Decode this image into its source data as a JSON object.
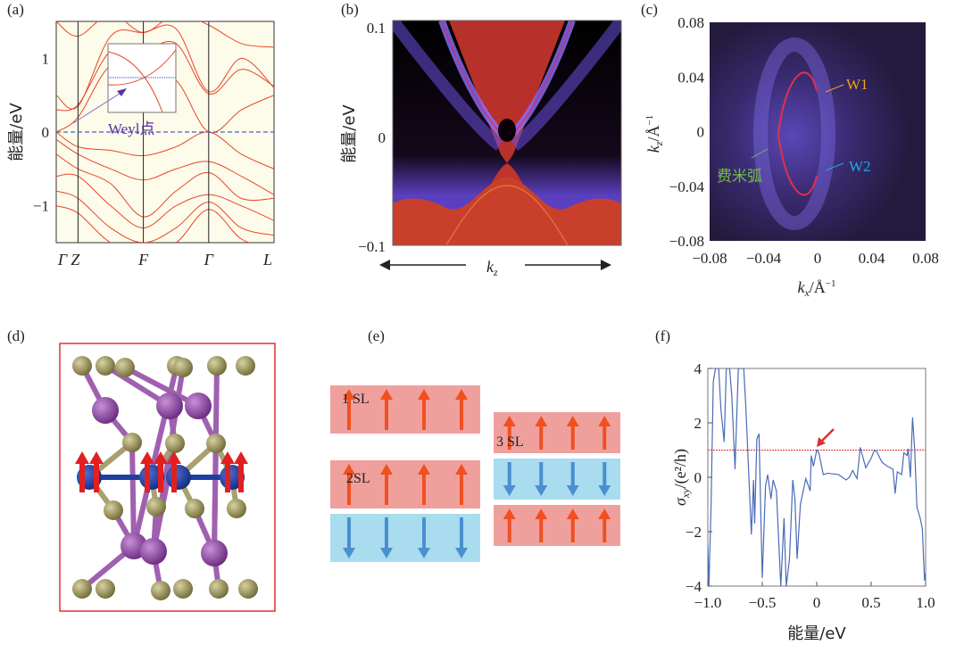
{
  "panels": {
    "a": {
      "label": "(a)",
      "ylabel": "能量/eV",
      "annotation": "Weyl点"
    },
    "b": {
      "label": "(b)",
      "ylabel": "能量/eV",
      "xlabel": "k",
      "xlabel_sub": "z"
    },
    "c": {
      "label": "(c)",
      "ylabel": "k",
      "ylabel_sub": "z",
      "ylabel_unit": "/Å",
      "xlabel": "k",
      "xlabel_sub": "x",
      "xlabel_unit": "/Å",
      "unit_sup": "−1",
      "annotations": {
        "w1": "W1",
        "w2": "W2",
        "arc": "费米弧"
      }
    },
    "d": {
      "label": "(d)"
    },
    "e": {
      "label": "(e)",
      "layers": {
        "sl1": "1 SL",
        "sl2": "2SL",
        "sl3": "3 SL"
      }
    },
    "f": {
      "label": "(f)",
      "ylabel": "σ",
      "ylabel_sub": "xy",
      "ylabel_unit": "/(e²/h)",
      "xlabel": "能量/eV"
    }
  },
  "colors": {
    "band": "#e8452c",
    "fermi": "#4a5fc0",
    "sigma": "#4a6ab8",
    "ref": "#e03030",
    "arrow_up": "#f05020",
    "arrow_down": "#4a90d0",
    "layer_up": "#f0a09c",
    "layer_down": "#a8dcee",
    "w1": "#f0a020",
    "w2": "#20a8e0",
    "arc": "#70c040"
  },
  "chart_data": [
    {
      "panel": "a",
      "type": "line",
      "ylabel": "能量/eV",
      "ylim": [
        -1.5,
        1.5
      ],
      "yticks": [
        "1",
        "0",
        "−1"
      ],
      "ytick_values": [
        1,
        0,
        -1
      ],
      "xticks": [
        "Γ",
        "Z",
        "F",
        "Γ",
        "L"
      ],
      "xtick_positions": [
        0,
        0.1,
        0.4,
        0.7,
        1.0
      ],
      "k": [
        0,
        0.1,
        0.25,
        0.4,
        0.55,
        0.7,
        0.85,
        1.0
      ],
      "series": [
        {
          "values": [
            1.5,
            1.3,
            1.6,
            1.35,
            1.6,
            1.45,
            1.2,
            1.15
          ]
        },
        {
          "values": [
            0.5,
            0.35,
            1.3,
            1.35,
            1.4,
            0.55,
            1.0,
            0.6
          ]
        },
        {
          "values": [
            0.3,
            0.37,
            1.1,
            1.1,
            1.2,
            0.52,
            0.85,
            0.62
          ]
        },
        {
          "values": [
            0.0,
            0.2,
            0.9,
            0.75,
            0.7,
            0.0,
            0.3,
            0.5
          ]
        },
        {
          "values": [
            0.0,
            -0.2,
            -0.25,
            -0.32,
            -0.2,
            0.0,
            -0.3,
            -0.5
          ]
        },
        {
          "values": [
            -0.1,
            -0.3,
            -0.5,
            -0.65,
            -0.5,
            -0.4,
            -0.6,
            -0.85
          ]
        },
        {
          "values": [
            -0.3,
            -0.5,
            -0.7,
            -1.15,
            -0.8,
            -0.55,
            -0.9,
            -0.9
          ]
        },
        {
          "values": [
            -0.6,
            -0.6,
            -1.0,
            -1.3,
            -1.0,
            -0.85,
            -1.0,
            -1.2
          ]
        },
        {
          "values": [
            -0.8,
            -0.9,
            -1.3,
            -1.5,
            -1.3,
            -0.95,
            -1.3,
            -1.4
          ]
        },
        {
          "values": [
            -1.0,
            -1.1,
            -1.5,
            -1.6,
            -1.5,
            -1.05,
            -1.45,
            -1.6
          ]
        }
      ],
      "reference_line": {
        "y": 0,
        "style": "dashed"
      }
    },
    {
      "panel": "b",
      "type": "heatmap",
      "ylabel": "能量/eV",
      "xlabel": "kz",
      "ylim": [
        -0.1,
        0.1
      ],
      "yticks": [
        "0.1",
        "0",
        "−0.1"
      ],
      "ytick_values": [
        0.1,
        0,
        -0.1
      ]
    },
    {
      "panel": "c",
      "type": "heatmap",
      "xlabel": "kx/Å⁻¹",
      "ylabel": "kz/Å⁻¹",
      "xlim": [
        -0.08,
        0.08
      ],
      "ylim": [
        -0.08,
        0.08
      ],
      "xticks": [
        "−0.08",
        "−0.04",
        "0",
        "0.04",
        "0.08"
      ],
      "xtick_values": [
        -0.08,
        -0.04,
        0,
        0.04,
        0.08
      ],
      "yticks": [
        "0.08",
        "0.04",
        "0",
        "−0.04",
        "−0.08"
      ],
      "ytick_values": [
        0.08,
        0.04,
        0,
        -0.04,
        -0.08
      ]
    },
    {
      "panel": "f",
      "type": "line",
      "xlabel": "能量/eV",
      "ylabel": "σxy/(e²/h)",
      "xlim": [
        -1.0,
        1.0
      ],
      "ylim": [
        -4,
        4
      ],
      "xticks": [
        "−1.0",
        "−0.5",
        "0",
        "0.5",
        "1.0"
      ],
      "xtick_values": [
        -1,
        -0.5,
        0,
        0.5,
        1
      ],
      "yticks": [
        "4",
        "2",
        "0",
        "−2",
        "−4"
      ],
      "ytick_values": [
        4,
        2,
        0,
        -2,
        -4
      ],
      "reference_line": {
        "y": 1,
        "style": "dashed"
      },
      "arrow_at": [
        0,
        1
      ],
      "x": [
        -1.0,
        -0.99,
        -0.97,
        -0.95,
        -0.93,
        -0.9,
        -0.88,
        -0.85,
        -0.83,
        -0.8,
        -0.78,
        -0.75,
        -0.72,
        -0.67,
        -0.65,
        -0.6,
        -0.58,
        -0.57,
        -0.55,
        -0.53,
        -0.5,
        -0.47,
        -0.45,
        -0.42,
        -0.4,
        -0.37,
        -0.33,
        -0.3,
        -0.28,
        -0.25,
        -0.22,
        -0.2,
        -0.18,
        -0.15,
        -0.1,
        -0.06,
        -0.05,
        -0.03,
        0.0,
        0.02,
        0.06,
        0.1,
        0.2,
        0.27,
        0.3,
        0.33,
        0.37,
        0.4,
        0.42,
        0.45,
        0.5,
        0.53,
        0.55,
        0.6,
        0.65,
        0.7,
        0.72,
        0.74,
        0.78,
        0.8,
        0.83,
        0.84,
        0.86,
        0.88,
        0.9,
        0.92,
        0.95,
        0.97,
        0.99,
        1.0
      ],
      "y": [
        -2.5,
        -4,
        -1,
        3.5,
        4,
        4,
        2.5,
        1.3,
        4,
        4,
        3,
        0.3,
        4,
        4,
        2.5,
        -2.1,
        -0.1,
        -1.7,
        1.4,
        1.6,
        -3.7,
        -0.3,
        0.1,
        -0.8,
        -0.1,
        -0.5,
        -4,
        -1.5,
        -4,
        -3,
        -0.1,
        -0.8,
        -3,
        -1,
        -0.05,
        -0.5,
        0.8,
        0.4,
        1.0,
        0.9,
        0.1,
        0.15,
        0.1,
        -0.1,
        0,
        0.25,
        -0.05,
        1.1,
        0.8,
        0.35,
        0.7,
        1.0,
        0.95,
        0.55,
        0.4,
        0.3,
        -0.6,
        0.2,
        0.1,
        0.9,
        0.8,
        1.05,
        0,
        2.2,
        1.0,
        -1.1,
        -1.5,
        -1.9,
        -3.8,
        -3.5
      ]
    }
  ]
}
